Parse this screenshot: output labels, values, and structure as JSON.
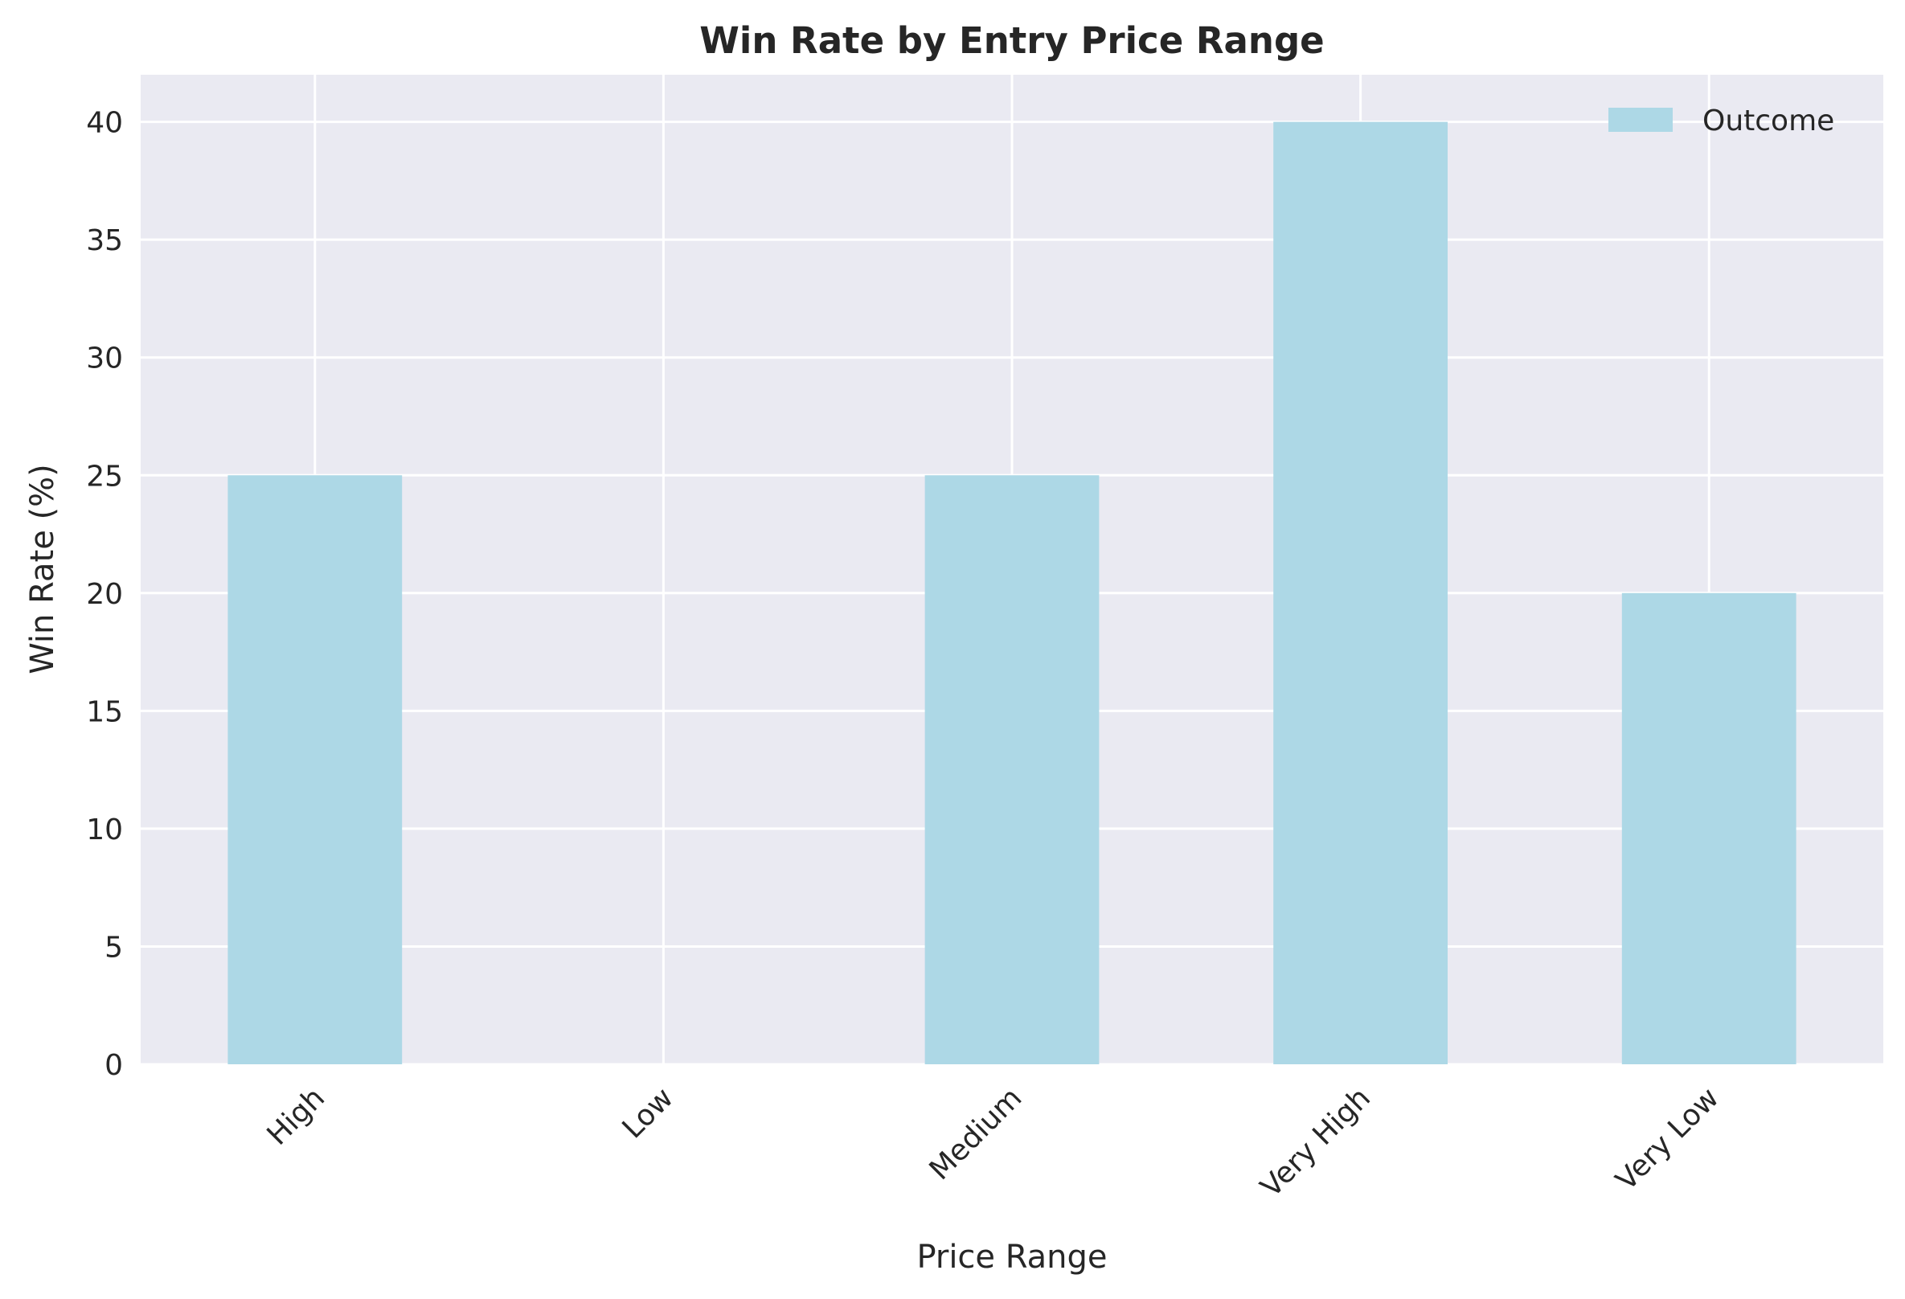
{
  "chart_data": {
    "type": "bar",
    "title": "Win Rate by Entry Price Range",
    "xlabel": "Price Range",
    "ylabel": "Win Rate (%)",
    "categories": [
      "High",
      "Low",
      "Medium",
      "Very High",
      "Very Low"
    ],
    "series": [
      {
        "name": "Outcome",
        "values": [
          25,
          0,
          25,
          40,
          20
        ]
      }
    ],
    "ylim": [
      0,
      42
    ],
    "yticks": [
      0,
      5,
      10,
      15,
      20,
      25,
      30,
      35,
      40
    ],
    "grid": true,
    "legend": "top-right",
    "colors": {
      "bar": "#add8e6",
      "background": "#eaeaf2",
      "grid": "#ffffff",
      "text": "#262626"
    }
  }
}
